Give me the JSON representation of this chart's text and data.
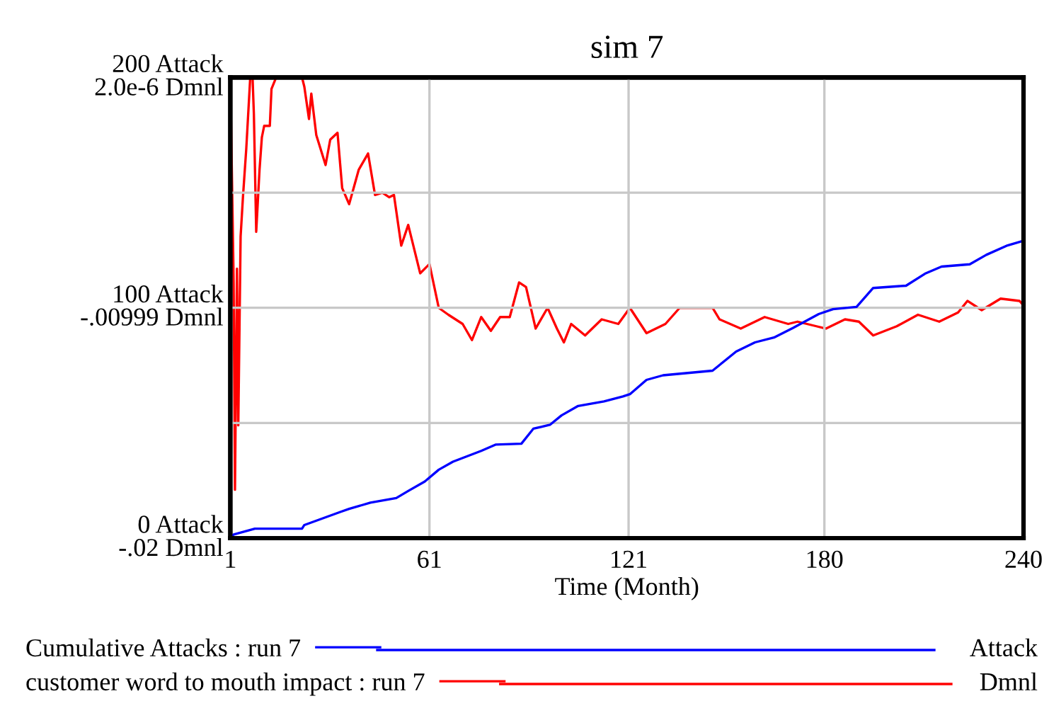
{
  "chart_data": {
    "type": "line",
    "title": "sim 7",
    "xlabel": "Time (Month)",
    "xlim": [
      1,
      240
    ],
    "xticks": [
      1,
      61,
      121,
      180,
      240
    ],
    "ylim": [
      0,
      200
    ],
    "yticks": [
      {
        "value": 0,
        "label": "0 Attack"
      },
      {
        "value": 50,
        "label": null
      },
      {
        "value": 100,
        "label": "100 Attack"
      },
      {
        "value": 150,
        "label": null
      },
      {
        "value": 200,
        "label": "200 Attack"
      }
    ],
    "y2lim": [
      -0.02,
      2e-06
    ],
    "y2ticks": [
      {
        "value": -0.02,
        "label": "-.02 Dmnl"
      },
      {
        "value": -0.00999,
        "label": "-.00999 Dmnl"
      },
      {
        "value": 2e-06,
        "label": "2.0e-6 Dmnl"
      }
    ],
    "grid": true,
    "legend": "bottom",
    "annotations": [
      "Attack",
      "Dmnl"
    ],
    "series": [
      {
        "name": "Cumulative Attacks : run 7",
        "color": "#0000ff",
        "x": [
          1,
          2,
          8.4,
          22.6,
          23.3,
          34,
          36.8,
          43.2,
          51,
          54.6,
          59.6,
          63.8,
          68.1,
          76.6,
          80.9,
          88.7,
          92.3,
          97.3,
          100.8,
          105.8,
          113.6,
          119.3,
          121.4,
          126.4,
          131.4,
          146.3,
          153.4,
          159.1,
          164.8,
          170.5,
          178.3,
          182.6,
          189.7,
          194.7,
          204.6,
          210.3,
          215.3,
          223.8,
          228.8,
          235.2,
          240
        ],
        "values": [
          0,
          1.6,
          4.1,
          4.1,
          5.7,
          11.3,
          12.7,
          15.4,
          17.4,
          20.5,
          24.6,
          29.7,
          33.2,
          37.9,
          40.6,
          41,
          47.5,
          49.2,
          53.3,
          57.4,
          59.4,
          61.5,
          62.5,
          68.7,
          70.7,
          72.7,
          81,
          85,
          87.1,
          91.2,
          97.3,
          99.4,
          100.4,
          108.6,
          109.6,
          114.8,
          117.9,
          118.9,
          123,
          127.1,
          129.1
        ]
      },
      {
        "name": "customer word to mouth impact : run 7",
        "color": "#ff0000",
        "axis": "y2",
        "x": [
          1,
          2,
          2.4,
          3,
          3.4,
          4.1,
          4.8,
          5.8,
          7,
          7.7,
          8.1,
          8.8,
          9.8,
          10.5,
          11.2,
          12.9,
          13.4,
          14.8,
          22.6,
          23.3,
          24.7,
          25.4,
          26.9,
          29.7,
          31.1,
          33.3,
          34.7,
          36.8,
          39.7,
          42.5,
          44.6,
          46.8,
          48.9,
          50.3,
          52.5,
          54.6,
          58.2,
          61,
          63.8,
          66.7,
          71,
          73.8,
          76.6,
          79.5,
          82.3,
          85.2,
          88,
          90.1,
          93,
          96.6,
          99.4,
          101.5,
          103.7,
          107.9,
          112.9,
          117.9,
          121.4,
          126.4,
          132.1,
          136.4,
          146.3,
          148.4,
          154.8,
          162,
          169.1,
          171.9,
          177.6,
          180.5,
          186.2,
          190.4,
          194.7,
          201.8,
          208.2,
          214.6,
          220.3,
          223.1,
          227.4,
          233.1,
          238.8,
          240
        ],
        "values": [
          0,
          -0.0089,
          -0.0179,
          -0.0083,
          -0.0151,
          -0.0069,
          -0.0052,
          -0.0031,
          0,
          0,
          -0.0016,
          -0.0067,
          -0.004,
          -0.0026,
          -0.0021,
          -0.0021,
          -0.0005,
          0,
          0,
          -0.0004,
          -0.0018,
          -0.0007,
          -0.0025,
          -0.0038,
          -0.0027,
          -0.0024,
          -0.0048,
          -0.0055,
          -0.004,
          -0.0033,
          -0.0051,
          -0.005,
          -0.0052,
          -0.0051,
          -0.0073,
          -0.0064,
          -0.0085,
          -0.0081,
          -0.01,
          -0.0103,
          -0.0107,
          -0.0114,
          -0.0104,
          -0.011,
          -0.0104,
          -0.0104,
          -0.0089,
          -0.0091,
          -0.0109,
          -0.01,
          -0.0109,
          -0.0115,
          -0.0107,
          -0.0112,
          -0.0105,
          -0.0107,
          -0.01,
          -0.0111,
          -0.0107,
          -0.01,
          -0.01,
          -0.0105,
          -0.0109,
          -0.0104,
          -0.0107,
          -0.0106,
          -0.0108,
          -0.0109,
          -0.0105,
          -0.0106,
          -0.0112,
          -0.0108,
          -0.0103,
          -0.0106,
          -0.0102,
          -0.0097,
          -0.0101,
          -0.0096,
          -0.0097,
          -0.0099
        ]
      }
    ]
  }
}
